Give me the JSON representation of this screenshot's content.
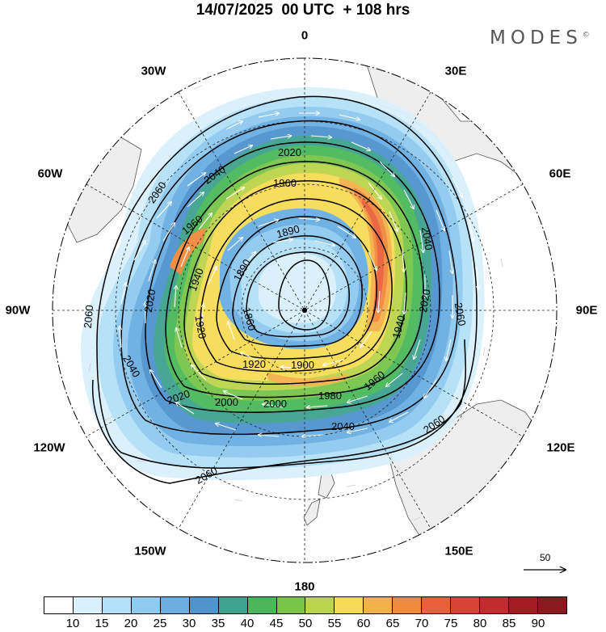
{
  "title": "14/07/2025  00 UTC  + 108 hrs",
  "brand": {
    "name": "MODES",
    "mark": "©"
  },
  "longitude_labels": {
    "n0": "0",
    "e30": "30E",
    "e60": "60E",
    "e90": "90E",
    "e120": "120E",
    "e150": "150E",
    "s180": "180",
    "w150": "150W",
    "w120": "120W",
    "w90": "90W",
    "w60": "60W",
    "w30": "30W"
  },
  "contour_labels": [
    "2020",
    "1960",
    "1890",
    "2040",
    "2060",
    "1960",
    "1890",
    "1940",
    "2020",
    "1860",
    "1920",
    "1920",
    "1900",
    "1940",
    "2020",
    "2060",
    "2000",
    "2000",
    "1980",
    "1960",
    "2040",
    "2060",
    "2060",
    "2040",
    "2020"
  ],
  "colorbar": {
    "ticks": [
      "10",
      "15",
      "20",
      "25",
      "30",
      "35",
      "40",
      "45",
      "50",
      "55",
      "60",
      "65",
      "70",
      "75",
      "80",
      "85",
      "90"
    ],
    "colors": [
      "#ffffff",
      "#d9f1fc",
      "#b4e0f7",
      "#8fcaef",
      "#6aaee3",
      "#4f93cf",
      "#3fa38e",
      "#4ab85a",
      "#78c54a",
      "#bcd44b",
      "#f6dc55",
      "#f4b14a",
      "#f08a3c",
      "#e8613a",
      "#d94335",
      "#c22c2f",
      "#a31c22",
      "#8b1a1e"
    ]
  },
  "vector_reference": {
    "label": "50"
  }
}
